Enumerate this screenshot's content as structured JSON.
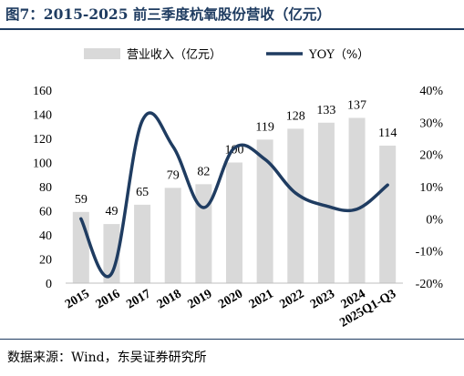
{
  "title": "图7：2015-2025 前三季度杭氧股份营收（亿元）",
  "source": "数据来源：Wind，东吴证券研究所",
  "chart_data": {
    "type": "bar+line",
    "categories": [
      "2015",
      "2016",
      "2017",
      "2018",
      "2019",
      "2020",
      "2021",
      "2022",
      "2023",
      "2024",
      "2025Q1-Q3"
    ],
    "series": [
      {
        "name": "营业收入（亿元）",
        "type": "bar",
        "axis": "left",
        "color": "#d9d9d9",
        "values": [
          59,
          49,
          65,
          79,
          82,
          100,
          119,
          128,
          133,
          137,
          114
        ]
      },
      {
        "name": "YOY（%）",
        "type": "line",
        "axis": "right",
        "color": "#1f3c61",
        "values": [
          0,
          -17,
          30.5,
          22.5,
          3.5,
          22,
          18.5,
          8,
          4,
          3,
          10.5
        ]
      }
    ],
    "y_left": {
      "min": 0,
      "max": 160,
      "ticks": [
        "0",
        "20",
        "40",
        "60",
        "80",
        "100",
        "120",
        "140",
        "160"
      ]
    },
    "y_right": {
      "min": -20,
      "max": 40,
      "ticks": [
        "-20%",
        "-10%",
        "0%",
        "10%",
        "20%",
        "30%",
        "40%"
      ]
    },
    "legend": {
      "position": "top"
    }
  }
}
